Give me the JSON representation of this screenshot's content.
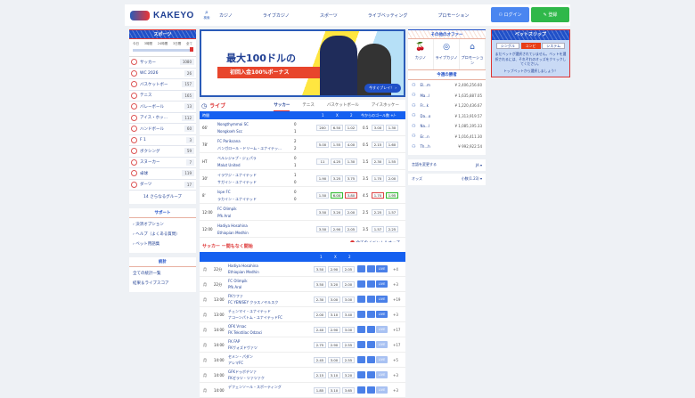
{
  "header": {
    "logo": "KAKEYO",
    "search_label": "検索",
    "nav": [
      "カジノ",
      "ライブカジノ",
      "スポーツ",
      "ライブベッティング",
      "プロモーション"
    ],
    "login": "ログイン",
    "register": "登録",
    "login_color": "#4a86f0",
    "register_color": "#2fb84a"
  },
  "sidebar": {
    "title": "スポーツ",
    "time_filters": [
      "今日",
      "3時間",
      "24時間",
      "3日間",
      "全て"
    ],
    "items": [
      {
        "label": "サッカー",
        "count": "1080"
      },
      {
        "label": "WC 2026",
        "count": "26"
      },
      {
        "label": "バスケットボー",
        "count": "157"
      },
      {
        "label": "テニス",
        "count": "165"
      },
      {
        "label": "バレーボール",
        "count": "13"
      },
      {
        "label": "アイス・ホッ…",
        "count": "112"
      },
      {
        "label": "ハンドボール",
        "count": "60"
      },
      {
        "label": "F 1",
        "count": "3"
      },
      {
        "label": "ボクシング",
        "count": "59"
      },
      {
        "label": "スヌーカー",
        "count": "7"
      },
      {
        "label": "卓球",
        "count": "119"
      },
      {
        "label": "ダーツ",
        "count": "17"
      }
    ],
    "more_groups": "14 さらなるグループ",
    "support_title": "サポート",
    "support_links": [
      "決済オプション",
      "ヘルプ（よくある質問）",
      "ベット用語集"
    ],
    "stats_title": "統計",
    "stats_links": [
      "全ての統計一覧",
      "結果＆ライブスコア"
    ]
  },
  "banner": {
    "headline": "最大100ドルの",
    "subline": "初回入金100%ボーナス",
    "cta": "今すぐプレイ！ ›"
  },
  "live": {
    "title": "ライブ",
    "tabs": [
      "サッカー",
      "テニス",
      "バスケットボール",
      "アイスホッケー"
    ],
    "active_tab": "サッカー",
    "columns": {
      "time": "時間",
      "c1": "1",
      "cx": "X",
      "c2": "2",
      "goals": "今からのゴール数 +/-"
    },
    "matches": [
      {
        "time": "66'",
        "home": "Nongthymmai SC",
        "away": "Nongkseh Scc",
        "hs": "0",
        "as": "1",
        "o": [
          "200",
          "6.50",
          "1.02"
        ],
        "line": "0.5",
        "ou": [
          "3.00",
          "1.30"
        ]
      },
      {
        "time": "78'",
        "home": "FC Pariksana",
        "away": "バンガロール・ドリーム・ユナイテッ…",
        "hs": "2",
        "as": "2",
        "o": [
          "5.00",
          "1.55",
          "4.00"
        ],
        "line": "0.5",
        "ou": [
          "2.15",
          "1.60"
        ]
      },
      {
        "time": "HT",
        "home": "ベルシジャプ・ジェパラ",
        "away": "Malut United",
        "hs": "0",
        "as": "1",
        "o": [
          "11",
          "4.25",
          "1.30"
        ],
        "line": "1.5",
        "ou": [
          "2.30",
          "1.55"
        ]
      },
      {
        "time": "30'",
        "home": "イラワジ・ユナイテッド",
        "away": "サガイン・ユナイテッド",
        "hs": "1",
        "as": "0",
        "o": [
          "1.90",
          "3.25",
          "3.75"
        ],
        "line": "3.5",
        "ou": [
          "1.70",
          "2.00"
        ]
      },
      {
        "time": "8'",
        "home": "Ispe FC",
        "away": "ラカイン・ユナイテッド",
        "hs": "0",
        "as": "0",
        "o": [
          "1.50",
          "6.00",
          "3.80"
        ],
        "line": "4.5",
        "ou": [
          "1.70",
          "1.95"
        ]
      },
      {
        "time": "12:00",
        "home": "FC Olimpik",
        "away": "Pfk Aral",
        "hs": "",
        "as": "",
        "o": [
          "3.50",
          "3.20",
          "2.00"
        ],
        "line": "2.5",
        "ou": [
          "2.25",
          "1.57"
        ]
      },
      {
        "time": "12:00",
        "home": "Hadiya Hosahina",
        "away": "Ethiopian Medhin",
        "hs": "",
        "as": "",
        "o": [
          "3.50",
          "2.90",
          "2.05"
        ],
        "line": "3.5",
        "ou": [
          "1.57",
          "2.25"
        ]
      }
    ],
    "all_events": "全てのイベント＆オッズ"
  },
  "soon": {
    "title": "サッカー ー間もなく開始",
    "columns": [
      "1",
      "X",
      "2"
    ],
    "live_label": "LIVE",
    "matches": [
      {
        "day": "月",
        "time": "22分",
        "home": "Hadiya Hosahina",
        "away": "Ethiopian Medhin",
        "o": [
          "3.50",
          "2.90",
          "2.05"
        ],
        "more": "+4",
        "live": true
      },
      {
        "day": "月",
        "time": "22分",
        "home": "FC Olimpik",
        "away": "Pfk Aral",
        "o": [
          "3.50",
          "3.20",
          "2.00"
        ],
        "more": "+3",
        "live": true
      },
      {
        "day": "月",
        "time": "13:00",
        "home": "FKウファ",
        "away": "FC YENISEY クラスノヤルスク",
        "o": [
          "2.30",
          "3.00",
          "3.00"
        ],
        "more": "+19",
        "live": true
      },
      {
        "day": "月",
        "time": "13:00",
        "home": "チェンマイ・ユナイテッド",
        "away": "ナコーンパトム・ユナイテッドFC",
        "o": [
          "2.00",
          "3.10",
          "3.40"
        ],
        "more": "+3",
        "live": true
      },
      {
        "day": "月",
        "time": "14:00",
        "home": "OFK Vrsac",
        "away": "FK Tekstilac Odzaci",
        "o": [
          "2.40",
          "2.90",
          "3.00"
        ],
        "more": "+17",
        "live": false
      },
      {
        "day": "月",
        "time": "14:00",
        "home": "FK FAP",
        "away": "FKヴォズドヴァツ",
        "o": [
          "2.75",
          "2.90",
          "2.55"
        ],
        "more": "+17",
        "live": false
      },
      {
        "day": "月",
        "time": "14:00",
        "home": "セメン・パダン",
        "away": "アレマFC",
        "o": [
          "2.45",
          "3.00",
          "2.55"
        ],
        "more": "+5",
        "live": false
      },
      {
        "day": "月",
        "time": "14:00",
        "home": "GFKドゥボチツァ",
        "away": "FKゼラツ・ツァツァク",
        "o": [
          "2.15",
          "3.10",
          "3.20"
        ],
        "more": "+3",
        "live": false
      },
      {
        "day": "月",
        "time": "14:00",
        "home": "デフェンソール・スポーティング",
        "away": "",
        "o": [
          "1.85",
          "3.10",
          "3.65"
        ],
        "more": "+3",
        "live": false
      }
    ]
  },
  "offers": {
    "title": "その他のオファー",
    "items": [
      {
        "label": "カジノ",
        "icon": "cherries-icon"
      },
      {
        "label": "ライブカジノ",
        "icon": "roulette-icon"
      },
      {
        "label": "プロモーション",
        "icon": "tag-icon"
      }
    ]
  },
  "winners": {
    "title": "今週の勝者",
    "list": [
      {
        "name": "El...m",
        "amount": "¥ 2,406,256.60"
      },
      {
        "name": "Ma...l",
        "amount": "¥ 1,635,887.05"
      },
      {
        "name": "Fr...k",
        "amount": "¥ 1,220,436.67"
      },
      {
        "name": "Da...o",
        "amount": "¥ 1,313,919.57"
      },
      {
        "name": "Na...l",
        "amount": "¥ 1,085,195.33"
      },
      {
        "name": "Er...n",
        "amount": "¥ 1,016,411.30"
      },
      {
        "name": "Th...h",
        "amount": "¥ 992,922.54"
      }
    ]
  },
  "settings": {
    "language_label": "言語を変更する",
    "language_value": "JA ▾",
    "odds_label": "オッズ",
    "odds_value": "小数(1.23) ▾"
  },
  "betslip": {
    "title": "ベットスリップ",
    "tabs": [
      "シングル",
      "コンビ",
      "システム"
    ],
    "active": "コンビ",
    "message": "まだベットが選択されていません。ベットを選択されるには、それぞれのオッズをクリックしてください。",
    "tip": "トップベットから選択しましょう！"
  }
}
